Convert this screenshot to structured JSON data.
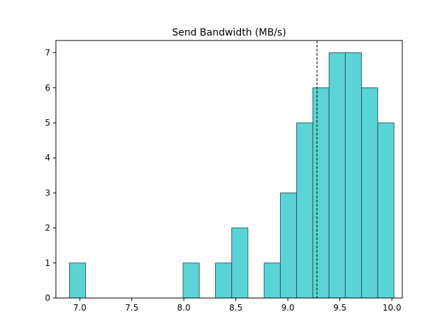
{
  "chart_data": {
    "type": "bar",
    "title": "Send Bandwidth (MB/s)",
    "xlabel": "",
    "ylabel": "",
    "xlim": [
      6.77,
      10.1
    ],
    "ylim": [
      0,
      7.35
    ],
    "xticks": [
      7.0,
      7.5,
      8.0,
      8.5,
      9.0,
      9.5,
      10.0
    ],
    "xtick_labels": [
      "7.0",
      "7.5",
      "8.0",
      "8.5",
      "9.0",
      "9.5",
      "10.0"
    ],
    "yticks": [
      0,
      1,
      2,
      3,
      4,
      5,
      6,
      7
    ],
    "ytick_labels": [
      "0",
      "1",
      "2",
      "3",
      "4",
      "5",
      "6",
      "7"
    ],
    "bins": [
      {
        "start": 6.9,
        "end": 7.056,
        "count": 1
      },
      {
        "start": 7.056,
        "end": 7.212,
        "count": 0
      },
      {
        "start": 7.212,
        "end": 7.368,
        "count": 0
      },
      {
        "start": 7.368,
        "end": 7.524,
        "count": 0
      },
      {
        "start": 7.524,
        "end": 7.68,
        "count": 0
      },
      {
        "start": 7.68,
        "end": 7.836,
        "count": 0
      },
      {
        "start": 7.836,
        "end": 7.992,
        "count": 0
      },
      {
        "start": 7.992,
        "end": 8.148,
        "count": 1
      },
      {
        "start": 8.148,
        "end": 8.304,
        "count": 0
      },
      {
        "start": 8.304,
        "end": 8.46,
        "count": 1
      },
      {
        "start": 8.46,
        "end": 8.616,
        "count": 2
      },
      {
        "start": 8.616,
        "end": 8.772,
        "count": 0
      },
      {
        "start": 8.772,
        "end": 8.928,
        "count": 1
      },
      {
        "start": 8.928,
        "end": 9.084,
        "count": 3
      },
      {
        "start": 9.084,
        "end": 9.24,
        "count": 5
      },
      {
        "start": 9.24,
        "end": 9.396,
        "count": 6
      },
      {
        "start": 9.396,
        "end": 9.552,
        "count": 7
      },
      {
        "start": 9.552,
        "end": 9.708,
        "count": 7
      },
      {
        "start": 9.708,
        "end": 9.864,
        "count": 6
      },
      {
        "start": 9.864,
        "end": 10.02,
        "count": 5
      }
    ],
    "mean_line": 9.28,
    "bar_color": "#5ad4d4",
    "bar_edge_color": "#2f4f4f",
    "mean_line_color": "#000000",
    "grid": false,
    "legend": "none"
  }
}
